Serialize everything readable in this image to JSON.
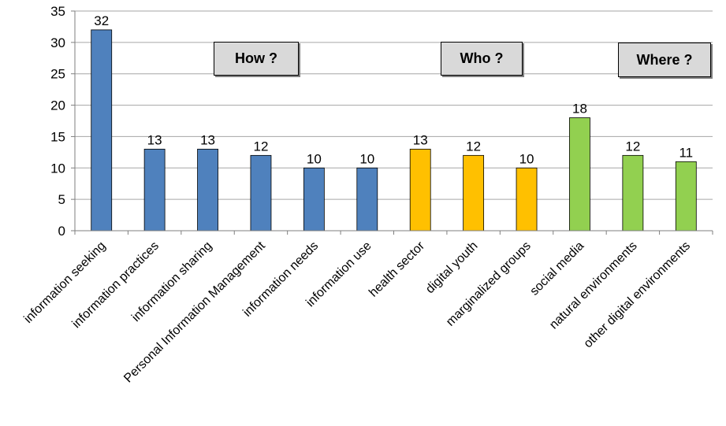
{
  "chart_data": {
    "type": "bar",
    "categories": [
      "information seeking",
      "information practices",
      "information sharing",
      "Personal Information Management",
      "information needs",
      "information use",
      "health sector",
      "digital youth",
      "marginalized groups",
      "social media",
      "natural environments",
      "other digital environments"
    ],
    "values": [
      32,
      13,
      13,
      12,
      10,
      10,
      13,
      12,
      10,
      18,
      12,
      11
    ],
    "bar_colors": [
      "#4f81bd",
      "#4f81bd",
      "#4f81bd",
      "#4f81bd",
      "#4f81bd",
      "#4f81bd",
      "#ffc000",
      "#ffc000",
      "#ffc000",
      "#92d050",
      "#92d050",
      "#92d050"
    ],
    "ylim": [
      0,
      35
    ],
    "yticks": [
      0,
      5,
      10,
      15,
      20,
      25,
      30,
      35
    ],
    "grid": true,
    "legend": "none",
    "annotations": [
      {
        "text": "How ?"
      },
      {
        "text": "Who ?"
      },
      {
        "text": "Where ?"
      }
    ]
  }
}
